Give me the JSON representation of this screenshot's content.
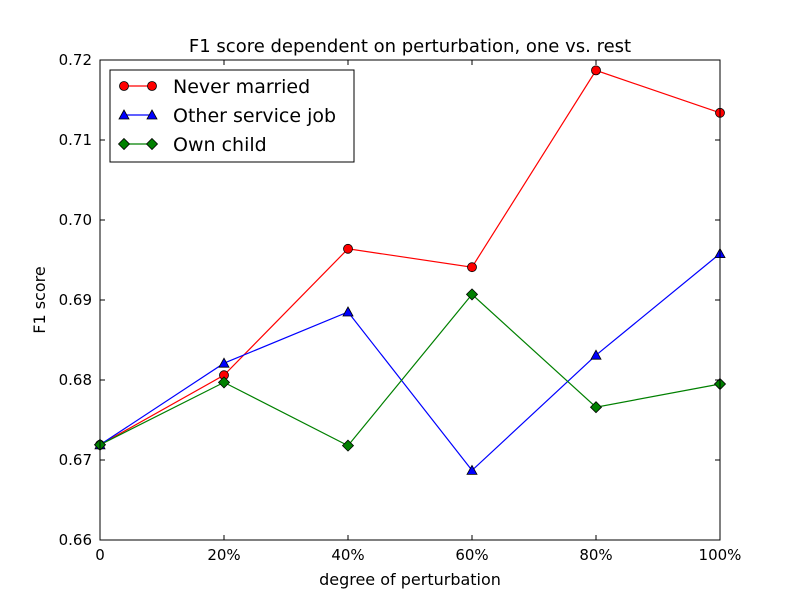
{
  "chart_data": {
    "type": "line",
    "title": "F1 score dependent on perturbation, one vs. rest",
    "xlabel": "degree of perturbation",
    "ylabel": "F1 score",
    "x": [
      0,
      20,
      40,
      60,
      80,
      100
    ],
    "x_tick_labels": [
      "0",
      "20%",
      "40%",
      "60%",
      "80%",
      "100%"
    ],
    "xlim": [
      0,
      100
    ],
    "ylim": [
      0.66,
      0.72
    ],
    "y_ticks": [
      0.66,
      0.67,
      0.68,
      0.69,
      0.7,
      0.71,
      0.72
    ],
    "y_tick_labels": [
      "0.66",
      "0.67",
      "0.68",
      "0.69",
      "0.70",
      "0.71",
      "0.72"
    ],
    "grid": false,
    "legend_position": "top-left",
    "series": [
      {
        "name": "Never married",
        "color": "#ff0000",
        "marker": "circle",
        "values": [
          0.6719,
          0.6806,
          0.6964,
          0.6941,
          0.7187,
          0.7134
        ]
      },
      {
        "name": "Other service job",
        "color": "#0000ff",
        "marker": "triangle",
        "values": [
          0.6719,
          0.6821,
          0.6885,
          0.6687,
          0.6831,
          0.6958
        ]
      },
      {
        "name": "Own child",
        "color": "#008000",
        "marker": "diamond",
        "values": [
          0.6719,
          0.6797,
          0.6718,
          0.6907,
          0.6766,
          0.6795
        ]
      }
    ]
  }
}
